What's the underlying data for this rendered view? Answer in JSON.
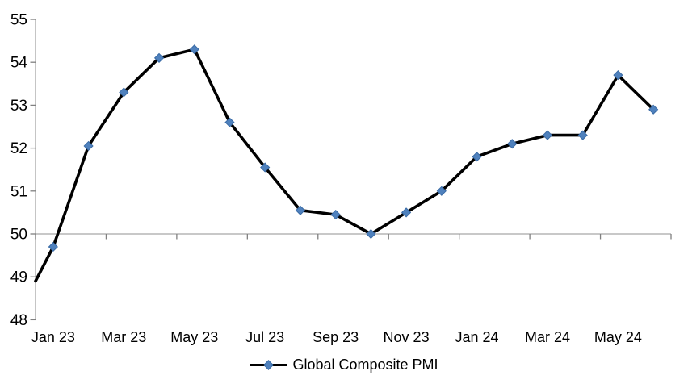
{
  "chart_data": {
    "type": "line",
    "title": "",
    "legend_label": "Global Composite PMI",
    "legend_position": "bottom",
    "categories": [
      "Jan 23",
      "Feb 23",
      "Mar 23",
      "Apr 23",
      "May 23",
      "Jun 23",
      "Jul 23",
      "Aug 23",
      "Sep 23",
      "Oct 23",
      "Nov 23",
      "Dec 23",
      "Jan 24",
      "Feb 24",
      "Mar 24",
      "Apr 24",
      "May 24",
      "Jun 24"
    ],
    "series": [
      {
        "name": "Global Composite PMI",
        "values": [
          49.7,
          52.05,
          53.3,
          54.1,
          54.3,
          52.6,
          51.55,
          50.55,
          50.45,
          50.0,
          50.5,
          51.0,
          51.8,
          52.1,
          52.3,
          52.3,
          53.7,
          52.9
        ],
        "line_color": "#000000",
        "marker_color": "#4F81BD",
        "marker_edge_color": "#3A6BA5",
        "marker_shape": "diamond"
      }
    ],
    "axis_intercept_value_at_left_edge": 48.9,
    "x_tick_labels": [
      "Jan 23",
      "Mar 23",
      "May 23",
      "Jul 23",
      "Sep 23",
      "Nov 23",
      "Jan 24",
      "Mar 24",
      "May 24"
    ],
    "y_ticks": [
      48,
      49,
      50,
      51,
      52,
      53,
      54,
      55
    ],
    "ylim": [
      48,
      55
    ],
    "x_axis_cross_at": 50,
    "grid": false,
    "axis_line_color": "#A6A6A6",
    "tick_color": "#808080",
    "label_color": "#000000",
    "background_color": "#FFFFFF"
  }
}
